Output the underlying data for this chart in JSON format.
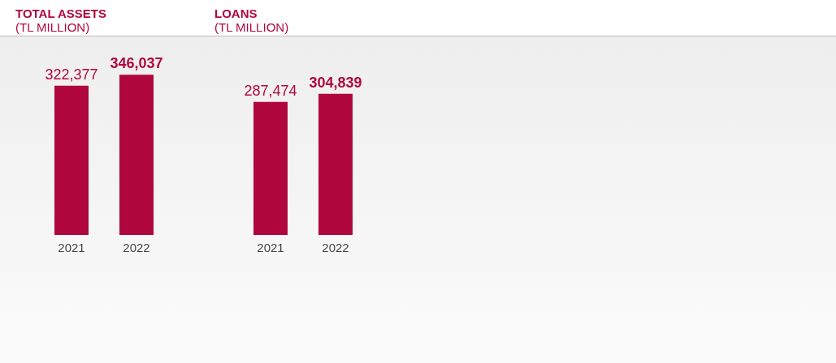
{
  "chart_data": [
    {
      "type": "bar",
      "title": "TOTAL ASSETS",
      "subtitle": "(TL MILLION)",
      "categories": [
        "2021",
        "2022"
      ],
      "values": [
        322377,
        346037
      ],
      "color": "#b0083e",
      "value_labels": [
        "322,377",
        "346,037"
      ]
    },
    {
      "type": "bar",
      "title": "LOANS",
      "subtitle": "(TL MILLION)",
      "categories": [
        "2021",
        "2022"
      ],
      "values": [
        287474,
        304839
      ],
      "color": "#b0083e",
      "value_labels": [
        "287,474",
        "304,839"
      ]
    }
  ]
}
